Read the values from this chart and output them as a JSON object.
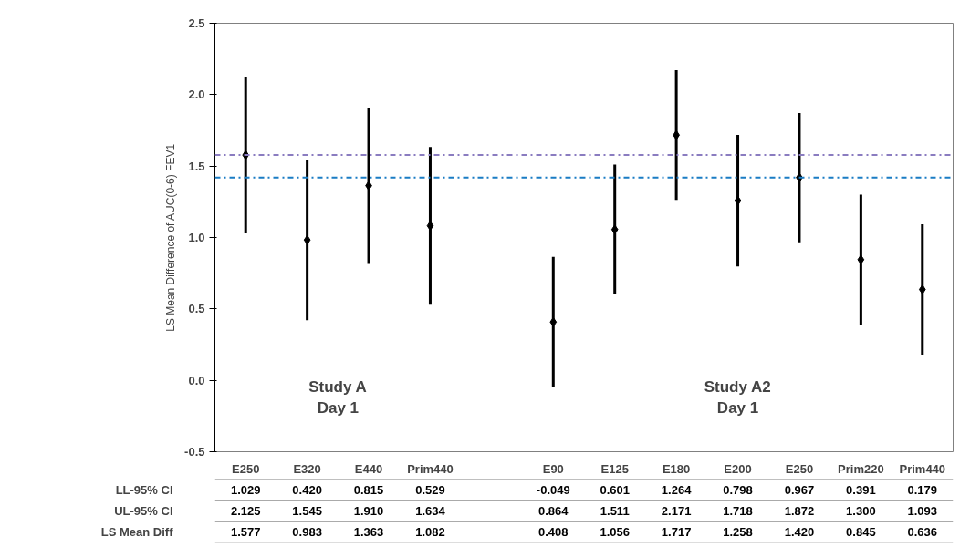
{
  "chart_data": {
    "type": "scatter",
    "ylabel": "LS Mean Difference of AUC(0-6) FEV1",
    "categories": [
      "E250",
      "E320",
      "E440",
      "Prim440",
      null,
      "E90",
      "E125",
      "E180",
      "E200",
      "E250",
      "Prim220",
      "Prim440"
    ],
    "series": [
      {
        "name": "LS Mean Diff",
        "color": "#000000",
        "values": [
          1.577,
          0.983,
          1.363,
          1.082,
          null,
          0.408,
          1.056,
          1.717,
          1.258,
          1.42,
          0.845,
          0.636
        ],
        "value_labels": [
          "1.577",
          "0.983",
          "1.363",
          "1.082",
          null,
          "0.408",
          "1.056",
          "1.717",
          "1.258",
          "1.420",
          "0.845",
          "0.636"
        ],
        "errors": [
          [
            1.029,
            2.125
          ],
          [
            0.42,
            1.545
          ],
          [
            0.815,
            1.91
          ],
          [
            0.529,
            1.634
          ],
          null,
          [
            -0.049,
            0.864
          ],
          [
            0.601,
            1.511
          ],
          [
            1.264,
            2.171
          ],
          [
            0.798,
            1.718
          ],
          [
            0.967,
            1.872
          ],
          [
            0.391,
            1.3
          ],
          [
            0.179,
            1.093
          ]
        ]
      }
    ],
    "marker": "diamond",
    "ylim": [
      -0.5,
      2.5
    ],
    "yticks": [
      {
        "value": -0.5,
        "label": "-0.5"
      },
      {
        "value": 0,
        "label": "0.0"
      },
      {
        "value": 0.5,
        "label": "0.5"
      },
      {
        "value": 1,
        "label": "1.0"
      },
      {
        "value": 1.5,
        "label": "1.5"
      },
      {
        "value": 2,
        "label": "2.0"
      },
      {
        "value": 2.5,
        "label": "2.5"
      }
    ],
    "grid": false,
    "ref_lines": [
      {
        "axis": "y",
        "value": 1.577,
        "color": "#8a7cc0",
        "line_style": "dashdot"
      },
      {
        "axis": "y",
        "value": 1.42,
        "color": "#1a7cc4",
        "line_style": "dashdot"
      }
    ],
    "annotations": [
      "Study A\nDay 1",
      "Study A2\nDay 1",
      "LL-95% CI",
      "UL-95% CI",
      "1.029",
      "0.420",
      "0.815",
      "0.529",
      "-0.049",
      "0.601",
      "1.264",
      "0.798",
      "0.967",
      "0.391",
      "0.179",
      "2.125",
      "1.545",
      "1.910",
      "1.634",
      "0.864",
      "1.511",
      "2.171",
      "1.718",
      "1.872",
      "1.300",
      "1.093"
    ]
  }
}
